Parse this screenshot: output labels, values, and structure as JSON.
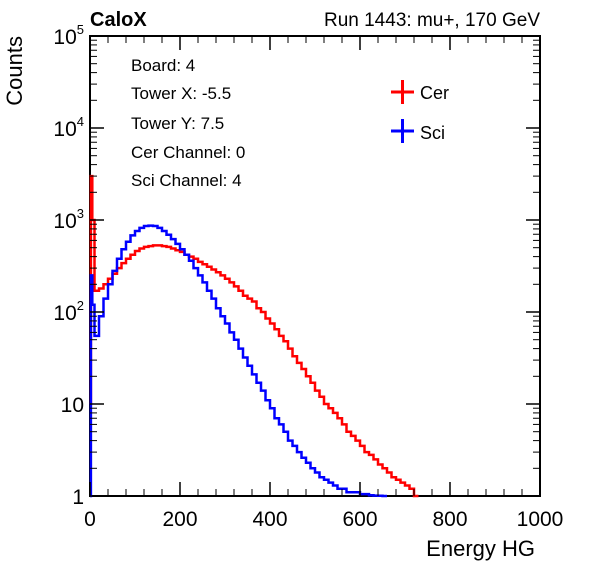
{
  "chart_data": {
    "type": "line",
    "title_left": "CaloX",
    "title_right": "Run 1443: mu+, 170 GeV",
    "xlabel": "Energy HG",
    "ylabel": "Counts",
    "xlim": [
      0,
      1000
    ],
    "ylim": [
      1,
      100000
    ],
    "y_scale": "log",
    "grid": false,
    "x_ticks": [
      {
        "value": 0,
        "label": "0"
      },
      {
        "value": 200,
        "label": "200"
      },
      {
        "value": 400,
        "label": "400"
      },
      {
        "value": 600,
        "label": "600"
      },
      {
        "value": 800,
        "label": "800"
      },
      {
        "value": 1000,
        "label": "1000"
      }
    ],
    "y_ticks": [
      {
        "value": 1,
        "base": "1",
        "exp": ""
      },
      {
        "value": 10,
        "base": "10",
        "exp": ""
      },
      {
        "value": 100,
        "base": "10",
        "exp": "2"
      },
      {
        "value": 1000,
        "base": "10",
        "exp": "3"
      },
      {
        "value": 10000,
        "base": "10",
        "exp": "4"
      },
      {
        "value": 100000,
        "base": "10",
        "exp": "5"
      }
    ],
    "info_box": [
      "Board: 4",
      "Tower X: -5.5",
      "Tower Y: 7.5",
      "Cer Channel: 0",
      "Sci Channel: 4"
    ],
    "legend_position": "top-right",
    "series": [
      {
        "name": "Cer",
        "color": "#ff0000",
        "x": [
          0,
          2,
          5,
          10,
          20,
          30,
          40,
          50,
          60,
          70,
          80,
          90,
          100,
          110,
          120,
          130,
          140,
          150,
          160,
          170,
          180,
          190,
          200,
          210,
          220,
          230,
          240,
          250,
          260,
          270,
          280,
          290,
          300,
          310,
          320,
          330,
          340,
          350,
          360,
          370,
          380,
          390,
          400,
          410,
          420,
          430,
          440,
          450,
          460,
          470,
          480,
          490,
          500,
          510,
          520,
          530,
          540,
          550,
          560,
          570,
          580,
          590,
          600,
          610,
          620,
          630,
          640,
          650,
          660,
          670,
          680,
          690,
          700,
          710,
          720
        ],
        "values": [
          10,
          3000,
          1000,
          170,
          180,
          200,
          230,
          260,
          300,
          340,
          380,
          420,
          460,
          490,
          510,
          520,
          530,
          530,
          520,
          510,
          490,
          470,
          450,
          420,
          400,
          380,
          350,
          330,
          310,
          290,
          270,
          250,
          230,
          210,
          190,
          170,
          150,
          140,
          130,
          110,
          100,
          85,
          75,
          65,
          55,
          48,
          40,
          33,
          28,
          24,
          20,
          17,
          14,
          12,
          10,
          9,
          8,
          7,
          6,
          5,
          4.5,
          4,
          3.5,
          3,
          2.8,
          2.5,
          2.2,
          2,
          1.8,
          1.6,
          1.5,
          1.4,
          1.3,
          1.2,
          1
        ]
      },
      {
        "name": "Sci",
        "color": "#0000ff",
        "x": [
          0,
          2,
          5,
          10,
          20,
          30,
          40,
          50,
          60,
          70,
          80,
          90,
          100,
          110,
          120,
          130,
          140,
          150,
          160,
          170,
          180,
          190,
          200,
          210,
          220,
          230,
          240,
          250,
          260,
          270,
          280,
          290,
          300,
          310,
          320,
          330,
          340,
          350,
          360,
          370,
          380,
          390,
          400,
          410,
          420,
          430,
          440,
          450,
          460,
          470,
          480,
          490,
          500,
          510,
          520,
          530,
          540,
          550,
          560,
          570,
          580,
          590,
          600,
          610,
          620,
          630,
          640,
          650
        ],
        "values": [
          1,
          250,
          120,
          55,
          90,
          140,
          200,
          280,
          380,
          480,
          580,
          680,
          760,
          820,
          860,
          870,
          860,
          820,
          760,
          690,
          620,
          550,
          480,
          420,
          360,
          300,
          250,
          210,
          170,
          140,
          110,
          90,
          75,
          60,
          50,
          40,
          32,
          26,
          21,
          17,
          14,
          11,
          9,
          7,
          6,
          5,
          4,
          3.5,
          3,
          2.6,
          2.3,
          2,
          1.8,
          1.6,
          1.5,
          1.4,
          1.3,
          1.2,
          1.2,
          1.1,
          1.1,
          1.1,
          1.05,
          1.05,
          1.02,
          1.01,
          1.005,
          1
        ]
      }
    ]
  }
}
